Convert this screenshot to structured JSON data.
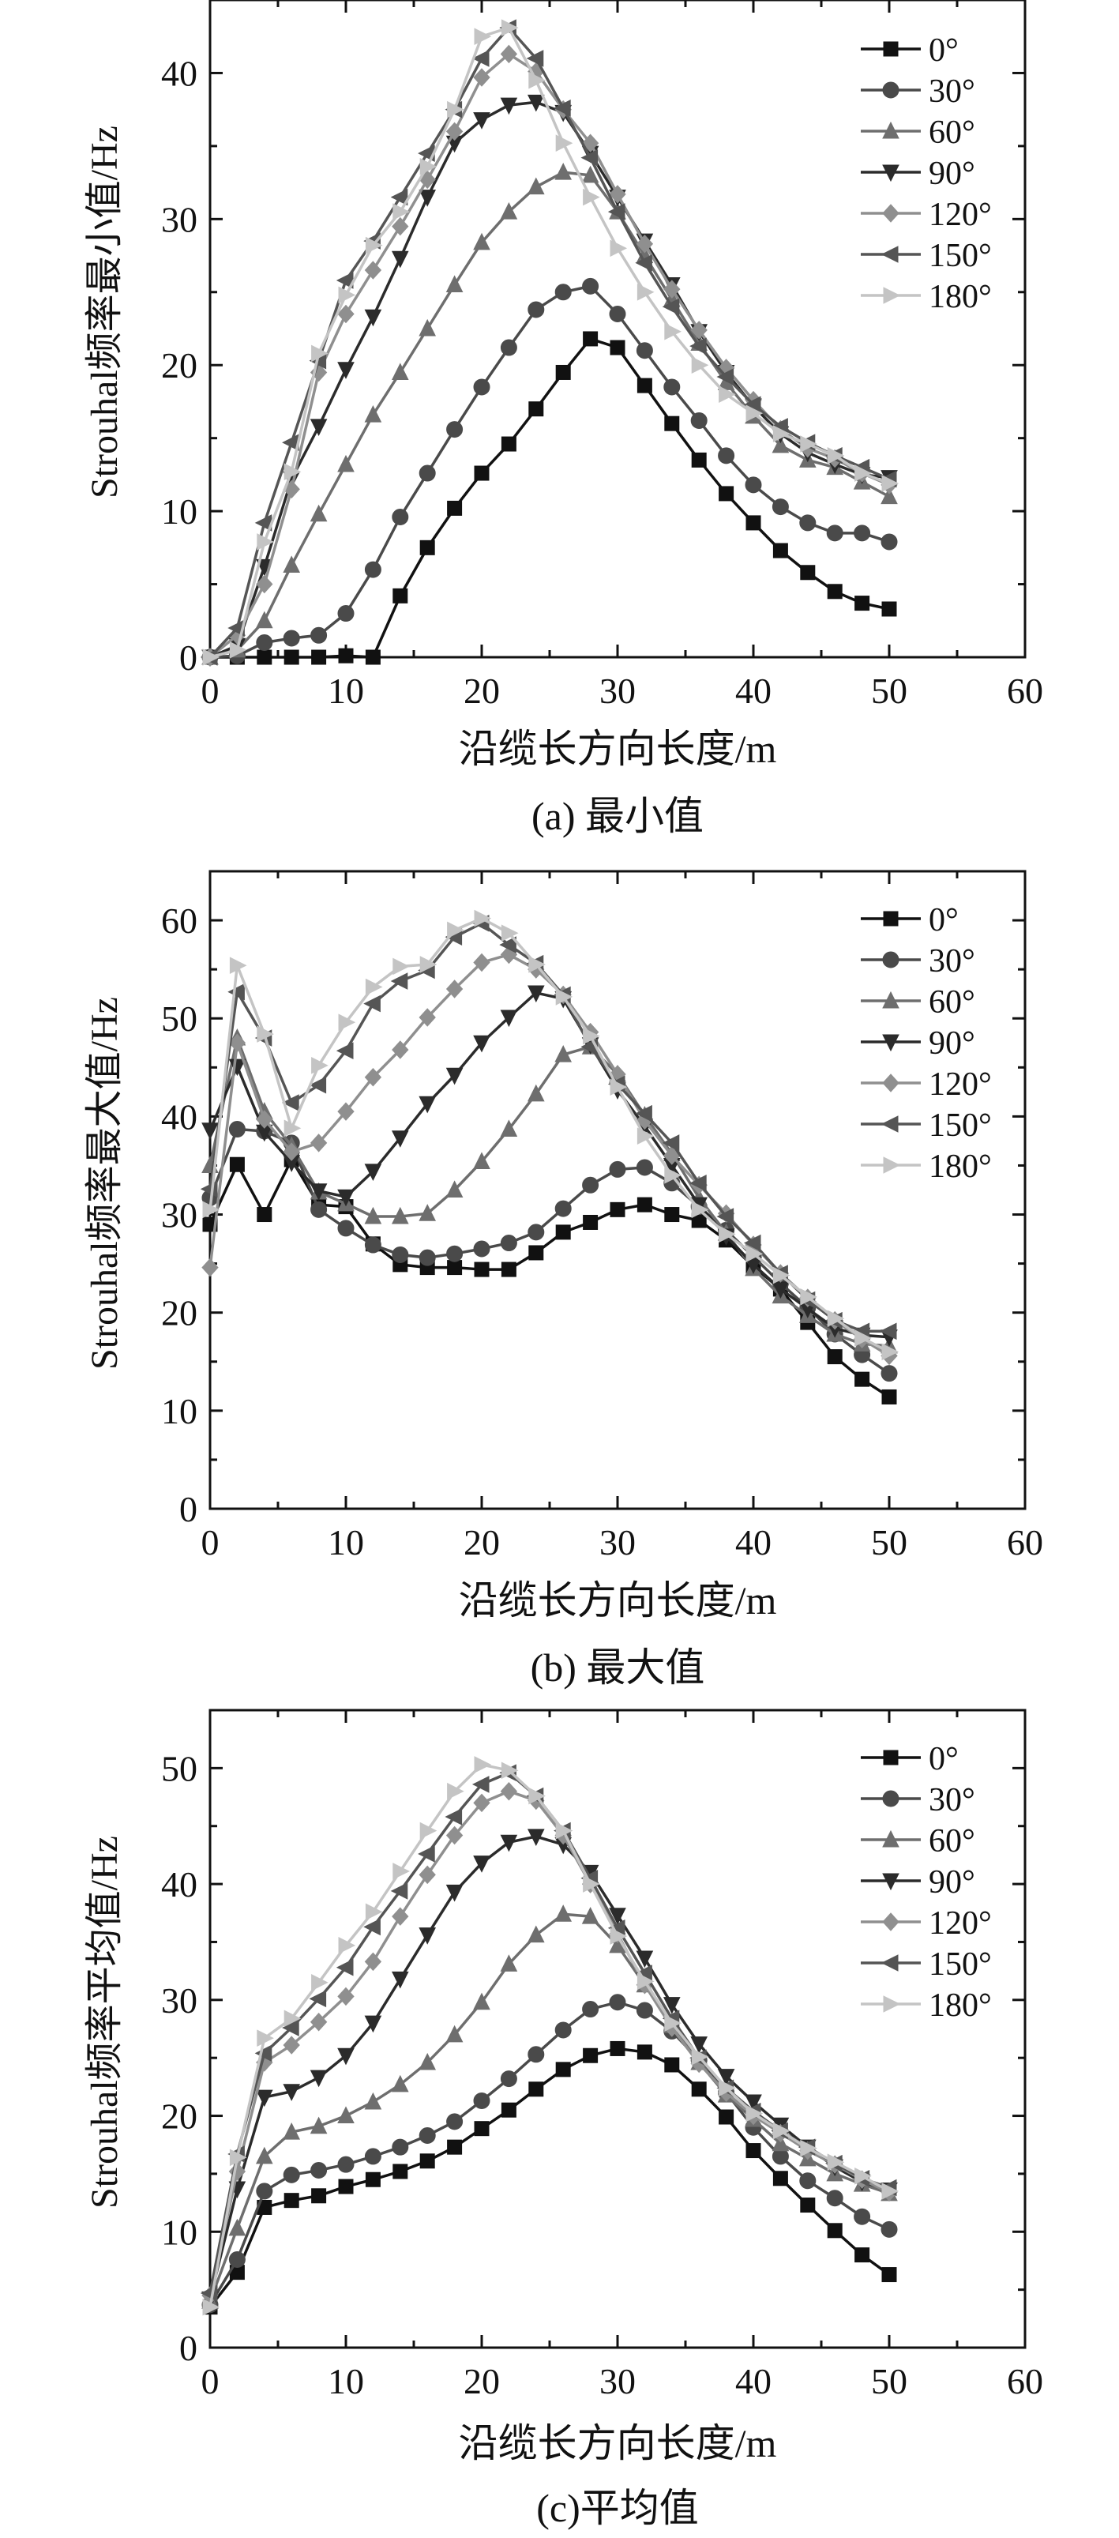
{
  "chart_data": [
    {
      "type": "line",
      "panel": "a",
      "caption": "(a) 最小值",
      "xlabel": "沿缆长方向长度/m",
      "ylabel": "Strouhal频率最小值/Hz",
      "xlim": [
        0,
        60
      ],
      "ylim": [
        0,
        45
      ],
      "xticks": [
        0,
        10,
        20,
        30,
        40,
        50,
        60
      ],
      "yticks": [
        0,
        10,
        20,
        30,
        40
      ],
      "legend_position": "top-right",
      "x": [
        0,
        2,
        4,
        6,
        8,
        10,
        12,
        14,
        16,
        18,
        20,
        22,
        24,
        26,
        28,
        30,
        32,
        34,
        36,
        38,
        40,
        42,
        44,
        46,
        48,
        50
      ],
      "series": [
        {
          "name": "0°",
          "values": [
            0,
            0,
            0,
            0,
            0,
            0.1,
            0,
            4.2,
            7.5,
            10.2,
            12.6,
            14.6,
            17,
            19.5,
            21.8,
            21.2,
            18.6,
            16,
            13.5,
            11.2,
            9.2,
            7.3,
            5.8,
            4.5,
            3.7,
            3.3
          ]
        },
        {
          "name": "30°",
          "values": [
            0,
            0.1,
            1,
            1.3,
            1.5,
            3,
            6,
            9.6,
            12.6,
            15.6,
            18.5,
            21.2,
            23.8,
            25,
            25.4,
            23.5,
            21,
            18.5,
            16.2,
            13.8,
            11.8,
            10.3,
            9.2,
            8.5,
            8.5,
            7.9
          ]
        },
        {
          "name": "60°",
          "values": [
            0,
            0.5,
            2.5,
            6.3,
            9.8,
            13.2,
            16.6,
            19.5,
            22.5,
            25.5,
            28.4,
            30.5,
            32.2,
            33.2,
            33,
            30.5,
            27.5,
            24.5,
            21.5,
            18.8,
            16.5,
            14.5,
            13.5,
            13,
            12,
            11
          ]
        },
        {
          "name": "90°",
          "values": [
            0,
            0.8,
            6.2,
            12.2,
            15.8,
            19.7,
            23.3,
            27.3,
            31.5,
            35.2,
            36.8,
            37.8,
            38,
            37.3,
            34.5,
            31.5,
            28.5,
            25.5,
            22.3,
            19.5,
            17.2,
            15.3,
            14,
            13.2,
            12.5,
            12.3
          ]
        },
        {
          "name": "120°",
          "values": [
            0,
            1.5,
            5,
            11.5,
            19.5,
            23.5,
            26.5,
            29.5,
            32.7,
            36,
            39.7,
            41.3,
            40.1,
            37.5,
            35.2,
            31.7,
            28.3,
            25.2,
            22.4,
            19.8,
            17.6,
            15.6,
            14.3,
            13.6,
            12.6,
            11.8
          ]
        },
        {
          "name": "150°",
          "values": [
            0,
            2,
            9.2,
            14.7,
            20.3,
            25.8,
            28.5,
            31.5,
            34.5,
            37.5,
            41,
            43.1,
            41,
            37.6,
            34.2,
            30.5,
            27,
            24,
            21.3,
            19.2,
            17.3,
            15.8,
            14.7,
            13.8,
            13,
            12.2
          ]
        },
        {
          "name": "180°",
          "values": [
            0,
            0.5,
            7.9,
            12.7,
            20.8,
            24.8,
            28.2,
            30.5,
            33.6,
            37.5,
            42.5,
            43.1,
            39.5,
            35.2,
            31.5,
            28,
            25,
            22.3,
            20,
            18,
            16.7,
            15.3,
            14.6,
            13.8,
            12.6,
            11.9
          ]
        }
      ]
    },
    {
      "type": "line",
      "panel": "b",
      "caption": "(b) 最大值",
      "xlabel": "沿缆长方向长度/m",
      "ylabel": "Strouhal频率最大值/Hz",
      "xlim": [
        0,
        60
      ],
      "ylim": [
        0,
        65
      ],
      "xticks": [
        0,
        10,
        20,
        30,
        40,
        50,
        60
      ],
      "yticks": [
        0,
        10,
        20,
        30,
        40,
        50,
        60
      ],
      "legend_position": "top-right",
      "x": [
        0,
        2,
        4,
        6,
        8,
        10,
        12,
        14,
        16,
        18,
        20,
        22,
        24,
        26,
        28,
        30,
        32,
        34,
        36,
        38,
        40,
        42,
        44,
        46,
        48,
        50
      ],
      "series": [
        {
          "name": "0°",
          "values": [
            29,
            35.1,
            30,
            35.6,
            31,
            30.8,
            27,
            24.9,
            24.6,
            24.6,
            24.4,
            24.4,
            26.1,
            28.2,
            29.2,
            30.5,
            31,
            30,
            29.4,
            27.4,
            24.7,
            22.4,
            19,
            15.5,
            13.2,
            11.4
          ]
        },
        {
          "name": "30°",
          "values": [
            31.7,
            38.7,
            38.5,
            37.3,
            30.5,
            28.6,
            26.9,
            25.9,
            25.6,
            26,
            26.5,
            27.1,
            28.2,
            30.6,
            33,
            34.6,
            34.8,
            33.2,
            30.8,
            28.4,
            25.7,
            23,
            20.5,
            17.8,
            15.7,
            13.8
          ]
        },
        {
          "name": "60°",
          "values": [
            35,
            48,
            40.5,
            37,
            32.3,
            31.1,
            29.8,
            29.8,
            30.1,
            32.5,
            35.4,
            38.7,
            42.3,
            46.3,
            47.1,
            44.3,
            40.1,
            36.2,
            31.7,
            28.1,
            24.5,
            21.7,
            19.7,
            17.8,
            16.8,
            16.6
          ]
        },
        {
          "name": "90°",
          "values": [
            38.6,
            45.1,
            38.4,
            35.3,
            32.4,
            31.8,
            34.4,
            37.8,
            41.3,
            44.2,
            47.5,
            50.1,
            52.6,
            52,
            47.3,
            42.7,
            39,
            35,
            31,
            27.8,
            24.9,
            22.4,
            20.4,
            18.4,
            17.7,
            17.5
          ]
        },
        {
          "name": "120°",
          "values": [
            24.6,
            47.5,
            39.7,
            36.4,
            37.3,
            40.5,
            44,
            46.8,
            50.1,
            53,
            55.7,
            56.5,
            55,
            52.4,
            48.6,
            44.3,
            39.6,
            36,
            33,
            30.1,
            26.9,
            24,
            21.5,
            19.2,
            17.3,
            15.6
          ]
        },
        {
          "name": "150°",
          "values": [
            32.6,
            52.7,
            48,
            41.4,
            43.2,
            46.7,
            51.5,
            53.8,
            54.9,
            58.3,
            59.7,
            57.5,
            55.6,
            52.4,
            47.1,
            43.3,
            40.3,
            37.3,
            33.2,
            29.8,
            27.1,
            24,
            21.3,
            19.2,
            18.1,
            18.1
          ]
        },
        {
          "name": "180°",
          "values": [
            30.5,
            55.4,
            48.4,
            38.8,
            45.2,
            49.6,
            53.2,
            55.3,
            55.5,
            59,
            60.2,
            58.7,
            55.5,
            52.2,
            48.2,
            43,
            38,
            34,
            30.5,
            28,
            26,
            23.8,
            21.6,
            19.4,
            17.4,
            16
          ]
        }
      ]
    },
    {
      "type": "line",
      "panel": "c",
      "caption": "(c)平均值",
      "xlabel": "沿缆长方向长度/m",
      "ylabel": "Strouhal频率平均值/Hz",
      "xlim": [
        0,
        60
      ],
      "ylim": [
        0,
        55
      ],
      "xticks": [
        0,
        10,
        20,
        30,
        40,
        50,
        60
      ],
      "yticks": [
        0,
        10,
        20,
        30,
        40,
        50
      ],
      "legend_position": "top-right",
      "x": [
        0,
        2,
        4,
        6,
        8,
        10,
        12,
        14,
        16,
        18,
        20,
        22,
        24,
        26,
        28,
        30,
        32,
        34,
        36,
        38,
        40,
        42,
        44,
        46,
        48,
        50
      ],
      "series": [
        {
          "name": "0°",
          "values": [
            3.5,
            6.5,
            12.1,
            12.7,
            13.1,
            13.9,
            14.5,
            15.2,
            16.1,
            17.3,
            18.9,
            20.5,
            22.3,
            24,
            25.2,
            25.8,
            25.5,
            24.4,
            22.3,
            19.9,
            17,
            14.6,
            12.3,
            10.1,
            8,
            6.3
          ]
        },
        {
          "name": "30°",
          "values": [
            3.7,
            7.6,
            13.5,
            14.9,
            15.3,
            15.8,
            16.5,
            17.3,
            18.3,
            19.5,
            21.3,
            23.2,
            25.3,
            27.4,
            29.2,
            29.8,
            29.1,
            27.3,
            24.8,
            22,
            19,
            16.5,
            14.4,
            12.9,
            11.3,
            10.2
          ]
        },
        {
          "name": "60°",
          "values": [
            4,
            10.3,
            16.5,
            18.6,
            19.1,
            20,
            21.2,
            22.7,
            24.6,
            27,
            29.8,
            33.1,
            35.6,
            37.4,
            37.2,
            34.7,
            31.3,
            27.8,
            24.6,
            21.8,
            19.7,
            17.6,
            16.3,
            15,
            14.1,
            13.3
          ]
        },
        {
          "name": "90°",
          "values": [
            4.2,
            13.7,
            21.6,
            22.1,
            23.3,
            25.2,
            28,
            31.8,
            35.6,
            39.3,
            41.8,
            43.6,
            44.1,
            43.4,
            41,
            37.3,
            33.6,
            29.6,
            26.2,
            23.4,
            21.2,
            19.2,
            17.3,
            15.6,
            14.3,
            13.6
          ]
        },
        {
          "name": "120°",
          "values": [
            4.5,
            15.2,
            24.6,
            26.1,
            28.1,
            30.3,
            33.3,
            37.2,
            40.8,
            44.2,
            47,
            48,
            47.2,
            44.2,
            40,
            35.7,
            31.3,
            27.6,
            24.5,
            22,
            20,
            18.5,
            17,
            15.8,
            14.5,
            13.4
          ]
        },
        {
          "name": "150°",
          "values": [
            4.7,
            16.7,
            25.4,
            27.6,
            30.1,
            32.8,
            36.3,
            39.4,
            42.6,
            45.8,
            48.6,
            49.6,
            47.6,
            44.6,
            40.5,
            36.2,
            32.3,
            28.4,
            25,
            22.4,
            20.4,
            18.7,
            17.3,
            15.9,
            14.6,
            13.8
          ]
        },
        {
          "name": "180°",
          "values": [
            3.5,
            16.4,
            26.7,
            28.4,
            31.5,
            34.7,
            37.6,
            41.1,
            44.6,
            48,
            50.3,
            49.8,
            47.6,
            44.6,
            40,
            35.5,
            31.6,
            28,
            25.1,
            22.4,
            20.2,
            18.7,
            17.2,
            16,
            14.8,
            13.5
          ]
        }
      ]
    }
  ],
  "legend": {
    "entries": [
      "0°",
      "30°",
      "60°",
      "90°",
      "120°",
      "150°",
      "180°"
    ],
    "colors": [
      "#111111",
      "#4a4a4a",
      "#6e6e6e",
      "#2b2b2b",
      "#8f8f8f",
      "#555555",
      "#c4c4c4"
    ],
    "markers": [
      "square",
      "circle",
      "triangle-up",
      "triangle-down",
      "diamond",
      "triangle-left",
      "triangle-right"
    ]
  }
}
